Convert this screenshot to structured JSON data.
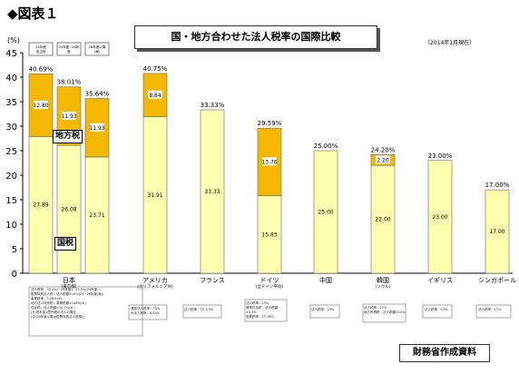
{
  "page": {
    "header": "◆図表１",
    "title": "国・地方合わせた法人税率の国際比較",
    "date_note": "（2014年1月現在）",
    "source": "財務省作成資料"
  },
  "colors": {
    "national": "#FFFFB0",
    "local": "#F5B800",
    "bar_stroke": "#666666"
  },
  "chart_data": {
    "type": "bar",
    "stacked": true,
    "title": "国・地方合わせた法人税率の国際比較",
    "ylabel": "(%)",
    "ylim": [
      0,
      45
    ],
    "yticks": [
      0,
      5,
      10,
      15,
      20,
      25,
      30,
      35,
      40,
      45
    ],
    "grid": false,
    "series": [
      {
        "name": "国税",
        "color": "#FFFFB0"
      },
      {
        "name": "地方税",
        "color": "#F5B800"
      }
    ],
    "categories": [
      "日本",
      "アメリカ",
      "フランス",
      "ドイツ",
      "中国",
      "韓国",
      "イギリス",
      "シンガポール"
    ],
    "category_sublabels": [
      "(東京都)",
      "(カリフォルニア州)",
      "",
      "(全ドイツ平均)",
      "",
      "(ソウル)",
      "",
      ""
    ],
    "japan_bars": [
      {
        "caption": "24年度\n改正前",
        "total": "40.69%",
        "national": 27.89,
        "local": 12.8
      },
      {
        "caption": "24年度~26年\n度",
        "total": "38.01%",
        "national": 26.08,
        "local": 11.93
      },
      {
        "caption": "26年度以降\n(案)",
        "total": "35.64%",
        "national": 23.71,
        "local": 11.93
      }
    ],
    "bars": [
      {
        "category": "アメリカ",
        "total": "40.75%",
        "national": 31.91,
        "local": 8.84
      },
      {
        "category": "フランス",
        "total": "33.33%",
        "national": 33.33,
        "local": 0
      },
      {
        "category": "ドイツ",
        "total": "29.59%",
        "national": 15.83,
        "local": 13.76
      },
      {
        "category": "中国",
        "total": "25.00%",
        "national": 25.0,
        "local": 0
      },
      {
        "category": "韓国",
        "total": "24.20%",
        "national": 22.0,
        "local": 2.2
      },
      {
        "category": "イギリス",
        "total": "23.00%",
        "national": 23.0,
        "local": 0
      },
      {
        "category": "シンガポール",
        "total": "17.00%",
        "national": 17.0,
        "local": 0
      }
    ],
    "annotations": {
      "local_tax_label": "地方税",
      "national_tax_label": "国税"
    }
  },
  "notes": {
    "japan": "法人税率：30.0%(~24年度)，25.5%(24年度~)\n復興特別法人税：法人税額×10%(24~26年度(案))\n事業税率：3.26%(※)\n地方法人特別税：事業税額×148%(※)\n住民税：法人税額×20.7%(※)\n(※)資本金1億円超の法人の場合\n(注)26年度以降は復興特別法人税廃止",
    "usa": "連邦法人税率：35%\n州法人税率：8.84%",
    "france": "法人税率：33 1/3%",
    "germany": "法人税率：15%\n連帯付加税：法人税額×5.5%\n営業税率：13.76%",
    "china": "法人税率：25%",
    "korea": "法人税率：22%\n地方所得税：法人税額×10%",
    "uk": "法人税率：23%",
    "singapore": "法人税率：17%"
  }
}
